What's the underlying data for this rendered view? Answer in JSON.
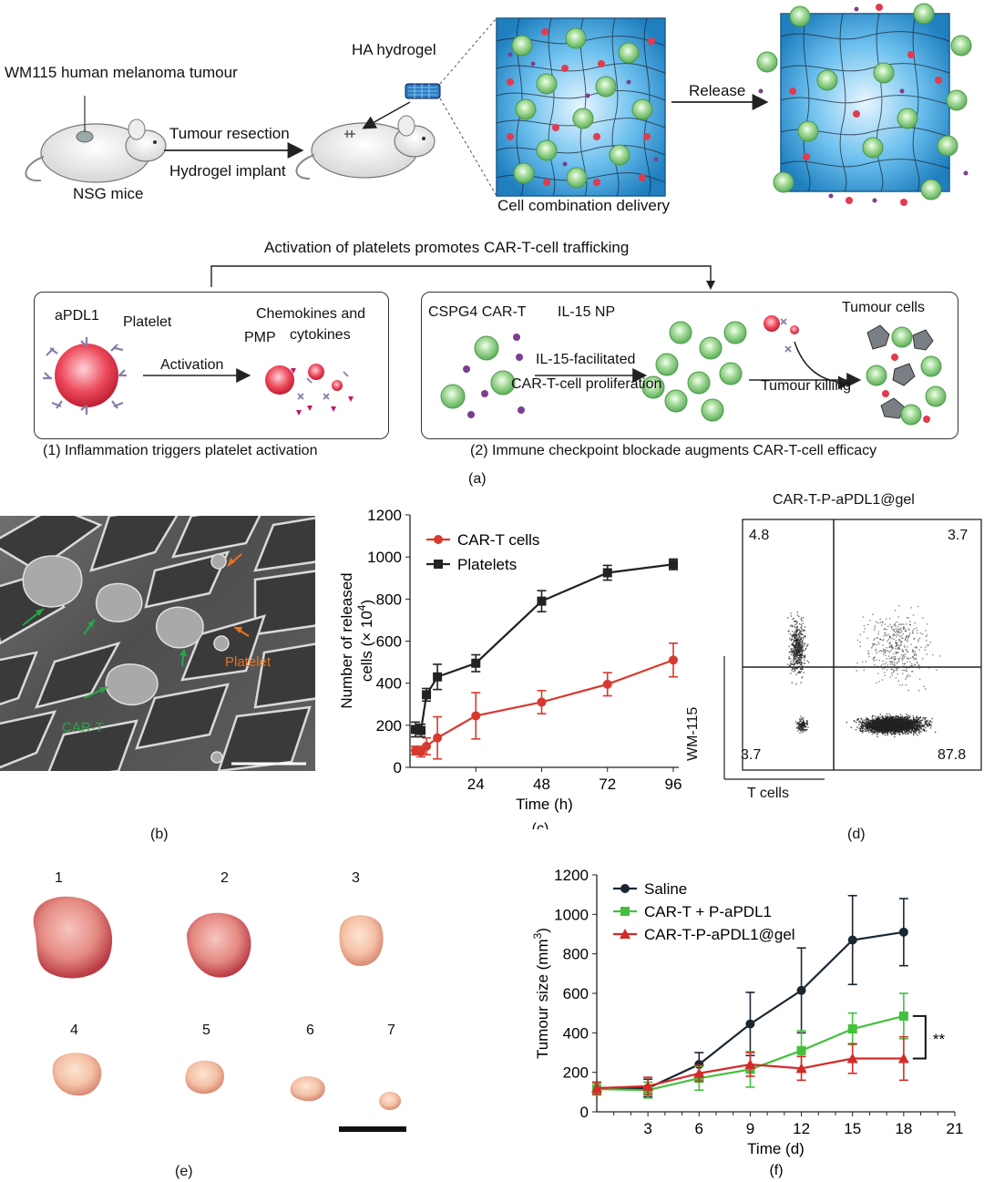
{
  "panel_a": {
    "tumour_label": "WM115 human melanoma tumour",
    "mice_label": "NSG mice",
    "resection_label": "Tumour resection",
    "implant_label": "Hydrogel implant",
    "hydrogel_label": "HA hydrogel",
    "delivery_label": "Cell combination delivery",
    "release_label": "Release",
    "trafficking_title": "Activation of platelets promotes CAR-T-cell trafficking",
    "box1": {
      "apdl1": "aPDL1",
      "platelet": "Platelet",
      "chemokines_line1": "Chemokines and",
      "chemokines_line2": "cytokines",
      "pmp": "PMP",
      "activation": "Activation",
      "caption": "(1) Inflammation triggers platelet activation"
    },
    "box2": {
      "cart": "CSPG4 CAR-T",
      "il15": "IL-15 NP",
      "facilitated": "IL-15-facilitated",
      "proliferation": "CAR-T-cell proliferation",
      "tumour_cells": "Tumour cells",
      "killing": "Tumour killing",
      "caption": "(2) Immune checkpoint blockade augments CAR-T-cell efficacy"
    },
    "label": "(a)"
  },
  "panel_b": {
    "platelet_label": "Platelet",
    "cart_label": "CAR-T",
    "label": "(b)"
  },
  "panel_d": {
    "title": "CAR-T-P-aPDL1@gel",
    "q_tl": "4.8",
    "q_tr": "3.7",
    "q_bl": "3.7",
    "q_br": "87.8",
    "ylabel": "WM-115",
    "xlabel": "T cells",
    "label": "(d)"
  },
  "panel_e": {
    "numbers": [
      "1",
      "2",
      "3",
      "4",
      "5",
      "6",
      "7"
    ],
    "label": "(e)"
  },
  "colors": {
    "hydrogel_blue": "#3a9ed8",
    "cart_green": "#7cc57a",
    "platelet_red": "#e23a4e",
    "np_purple": "#7b3f8f",
    "saline": "#1a2733",
    "combo": "#44c03c",
    "gel": "#d32a2a",
    "cart_series": "#d8392f",
    "platelet_series": "#222222"
  },
  "chart_data": [
    {
      "panel": "(c)",
      "type": "line",
      "xlabel": "Time (h)",
      "ylabel_line1": "Number of released",
      "ylabel_line2": "cells (× 10",
      "ylabel_sup": "4",
      "ylabel_end": ")",
      "xlim": [
        0,
        98
      ],
      "ylim": [
        0,
        1200
      ],
      "xticks": [
        "24",
        "48",
        "72",
        "96"
      ],
      "yticks": [
        "0",
        "200",
        "400",
        "600",
        "800",
        "1000",
        "1200"
      ],
      "legend_position": "top-left",
      "series": [
        {
          "name": "CAR-T cells",
          "marker": "circle",
          "x": [
            2,
            4,
            6,
            10,
            24,
            48,
            72,
            96
          ],
          "y": [
            80,
            75,
            100,
            140,
            245,
            310,
            395,
            510
          ],
          "err": [
            20,
            25,
            40,
            100,
            110,
            55,
            55,
            80
          ]
        },
        {
          "name": "Platelets",
          "marker": "square",
          "x": [
            2,
            4,
            6,
            10,
            24,
            48,
            72,
            96
          ],
          "y": [
            180,
            175,
            345,
            430,
            495,
            790,
            925,
            965
          ],
          "err": [
            35,
            30,
            30,
            60,
            40,
            50,
            35,
            25
          ]
        }
      ]
    },
    {
      "panel": "(f)",
      "type": "line",
      "xlabel": "Time (d)",
      "ylabel": "Tumour size (mm",
      "ylabel_sup": "3",
      "ylabel_end": ")",
      "xlim": [
        0,
        21
      ],
      "ylim": [
        0,
        1200
      ],
      "xticks": [
        "3",
        "6",
        "9",
        "12",
        "15",
        "18",
        "21"
      ],
      "yticks": [
        "0",
        "200",
        "400",
        "600",
        "800",
        "1000",
        "1200"
      ],
      "legend_position": "top-left",
      "significance": "**",
      "series": [
        {
          "name": "Saline",
          "marker": "circle",
          "x": [
            0,
            3,
            6,
            9,
            12,
            15,
            18
          ],
          "y": [
            120,
            120,
            240,
            445,
            615,
            870,
            910
          ],
          "err": [
            30,
            45,
            60,
            160,
            215,
            225,
            170
          ]
        },
        {
          "name": "CAR-T + P-aPDL1",
          "marker": "square",
          "x": [
            0,
            3,
            6,
            9,
            12,
            15,
            18
          ],
          "y": [
            115,
            110,
            170,
            215,
            310,
            420,
            485
          ],
          "err": [
            30,
            40,
            60,
            90,
            100,
            80,
            115
          ]
        },
        {
          "name": "CAR-T-P-aPDL1@gel",
          "marker": "triangle",
          "x": [
            0,
            3,
            6,
            9,
            12,
            15,
            18
          ],
          "y": [
            120,
            130,
            195,
            240,
            220,
            270,
            270
          ],
          "err": [
            30,
            45,
            40,
            60,
            60,
            75,
            110
          ]
        }
      ]
    }
  ]
}
